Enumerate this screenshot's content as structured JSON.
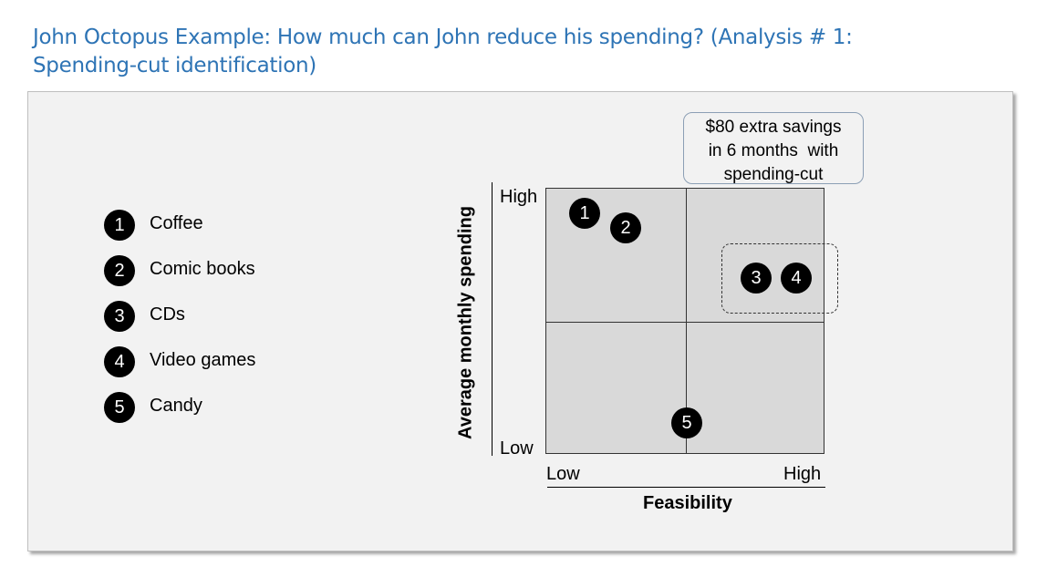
{
  "title": {
    "line1": "John Octopus Example: How much can John reduce his spending? (Analysis # 1:",
    "line2": "Spending-cut identification)"
  },
  "legend": [
    {
      "num": "1",
      "label": "Coffee"
    },
    {
      "num": "2",
      "label": "Comic books"
    },
    {
      "num": "3",
      "label": "CDs"
    },
    {
      "num": "4",
      "label": "Video games"
    },
    {
      "num": "5",
      "label": "Candy"
    }
  ],
  "matrix": {
    "y_axis_title": "Average monthly spending",
    "x_axis_title": "Feasibility",
    "y_high": "High",
    "y_low": "Low",
    "x_low": "Low",
    "x_high": "High",
    "items": [
      {
        "num": "1",
        "feasibility_quadrant": "low",
        "spending_quadrant": "high"
      },
      {
        "num": "2",
        "feasibility_quadrant": "low",
        "spending_quadrant": "high"
      },
      {
        "num": "3",
        "feasibility_quadrant": "high",
        "spending_quadrant": "high"
      },
      {
        "num": "4",
        "feasibility_quadrant": "high",
        "spending_quadrant": "high"
      },
      {
        "num": "5",
        "feasibility_quadrant": "middle",
        "spending_quadrant": "low"
      }
    ],
    "highlighted_group": [
      "3",
      "4"
    ]
  },
  "callout": {
    "line1": "$80 extra savings",
    "line2": "in 6 months  with",
    "line3": "spending-cut"
  },
  "colors": {
    "title": "#2e74b5",
    "panel": "#f2f2f2",
    "quadrant": "#d9d9d9",
    "marker": "#000000"
  }
}
